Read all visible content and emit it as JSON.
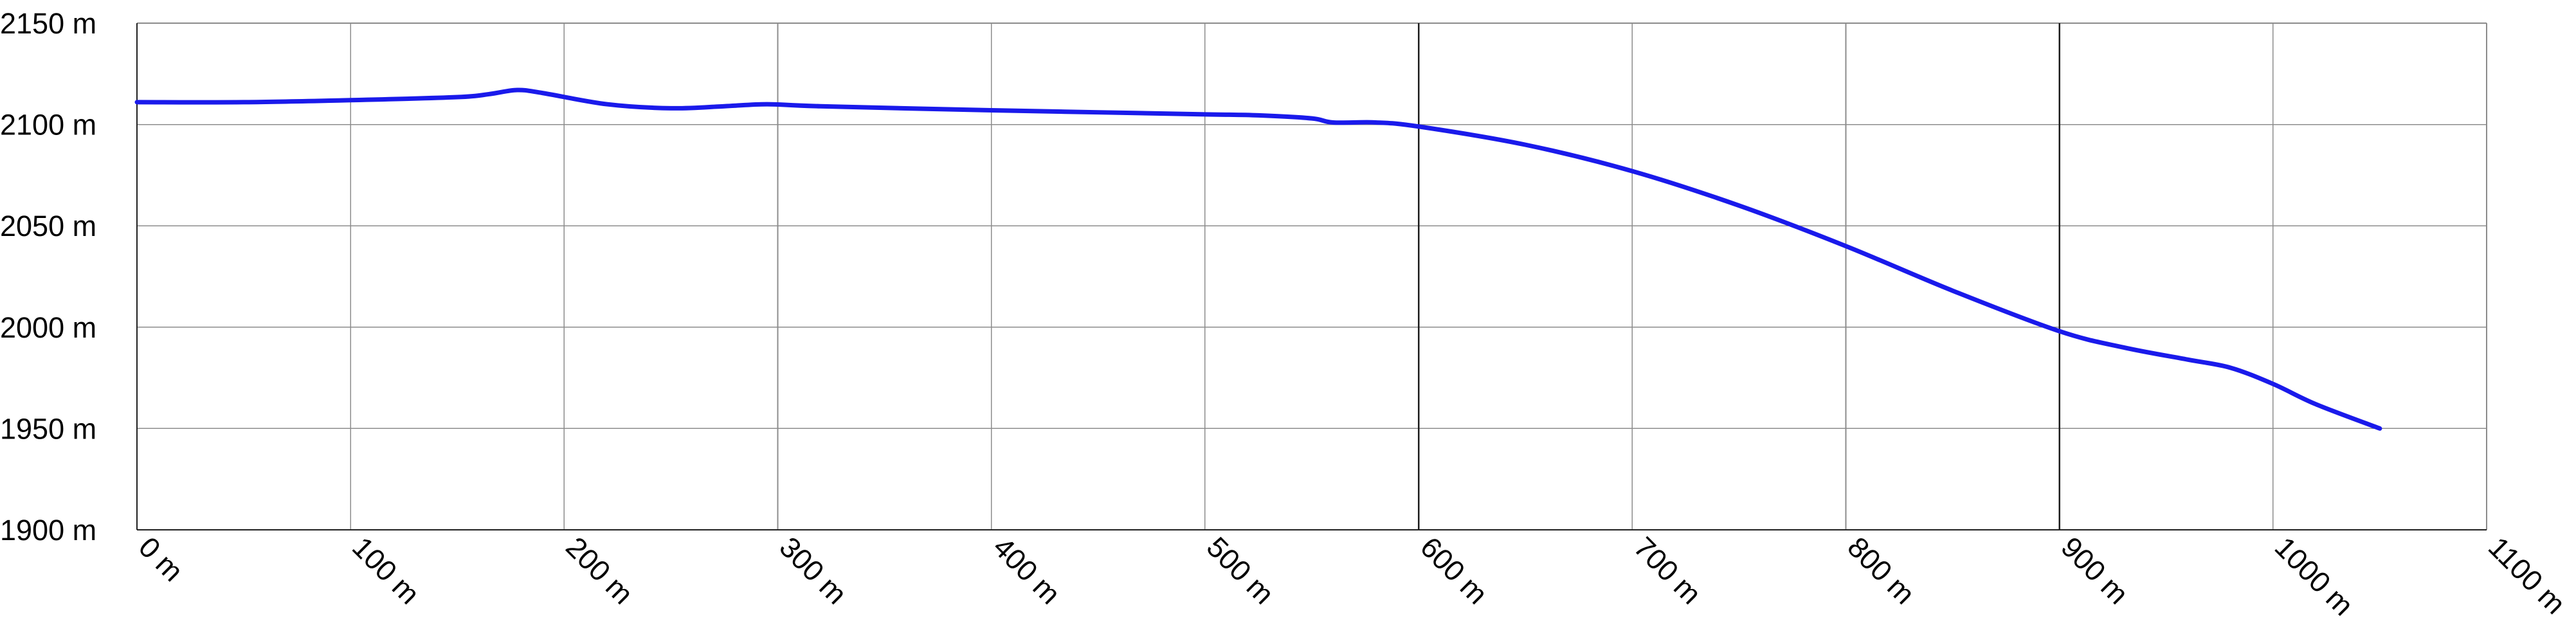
{
  "chart_data": {
    "type": "line",
    "title": "",
    "xlabel": "",
    "ylabel": "",
    "xlim": [
      0,
      1100
    ],
    "ylim": [
      1900,
      2150
    ],
    "grid": true,
    "legend": "none",
    "x_tick_values": [
      0,
      100,
      200,
      300,
      400,
      500,
      600,
      700,
      800,
      900,
      1000,
      1100
    ],
    "x_tick_labels": [
      "0 m",
      "100 m",
      "200 m",
      "300 m",
      "400 m",
      "500 m",
      "600 m",
      "700 m",
      "800 m",
      "900 m",
      "1000 m",
      "1100 m"
    ],
    "y_tick_values": [
      2150,
      2100,
      2050,
      2000,
      1950,
      1900
    ],
    "y_tick_labels": [
      "2150 m",
      "2100 m",
      "2050 m",
      "2000 m",
      "1950 m",
      "1900 m"
    ],
    "major_x_lines": [
      600,
      900
    ],
    "series": [
      {
        "color": "#1a1aeb",
        "x": [
          0,
          50,
          100,
          150,
          165,
          178,
          190,
          220,
          250,
          275,
          295,
          320,
          400,
          450,
          500,
          525,
          550,
          560,
          580,
          600,
          650,
          700,
          750,
          800,
          850,
          900,
          930,
          960,
          980,
          1000,
          1020,
          1050
        ],
        "y": [
          2111,
          2111,
          2112,
          2113.5,
          2115,
          2117,
          2115.5,
          2110,
          2108,
          2109,
          2110,
          2109,
          2107,
          2106,
          2105,
          2104.5,
          2103,
          2101,
          2101,
          2099,
          2090,
          2077,
          2060,
          2040,
          2018,
          1998,
          1990,
          1984,
          1980,
          1972,
          1962,
          1950
        ]
      }
    ]
  },
  "colors": {
    "background": "#ffffff",
    "grid": "#8c8c8c",
    "major_grid": "#1e1e1e",
    "axis": "#202020",
    "line": "#1a1aeb",
    "text": "#000000"
  }
}
